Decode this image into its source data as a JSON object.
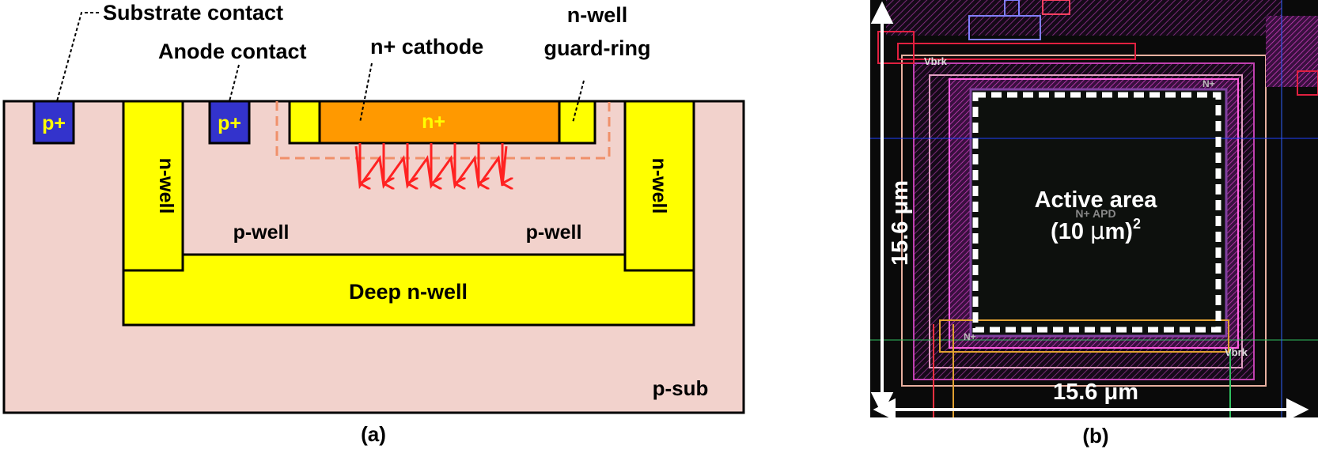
{
  "panel_a": {
    "caption": "(a)",
    "callouts": {
      "substrate_contact": "Substrate contact",
      "anode_contact": "Anode contact",
      "n_plus_cathode": "n+ cathode",
      "nwell_guard_ring_line1": "n-well",
      "nwell_guard_ring_line2": "guard-ring"
    },
    "regions": {
      "p_plus_substrate": "p+",
      "p_plus_anode": "p+",
      "n_plus": "n+",
      "n_well_left": "n-well",
      "n_well_right": "n-well",
      "p_well_left": "p-well",
      "p_well_right": "p-well",
      "deep_n_well": "Deep n-well",
      "p_sub": "p-sub"
    },
    "colors": {
      "substrate": "#f2d2cc",
      "n_well": "#ffff00",
      "p_plus": "#3333cc",
      "n_plus": "#ff9900",
      "field_arrows": "#ff2222",
      "depletion_outline": "#f0906a",
      "p_plus_text": "#ffff00"
    }
  },
  "panel_b": {
    "caption": "(b)",
    "active_area_line1": "Active area",
    "active_area_line2_prefix": "(10 ",
    "active_area_mu": "μ",
    "active_area_line2_suffix": "m)",
    "active_area_sup": "2",
    "width_label": "15.6 μm",
    "height_label": "15.6 μm",
    "layout_labels": {
      "vbrk_top": "Vbrk",
      "vbrk_bottom": "Vbrk",
      "nplus_top": "N+",
      "nplus_bottom": "N+",
      "apd_label": "N+ APD"
    },
    "colors": {
      "background": "#0a0a0a",
      "metal": "#b030a0",
      "guard": "#e0a0c0",
      "accent_red": "#e02040",
      "dimension_arrows": "#ffffff"
    }
  }
}
